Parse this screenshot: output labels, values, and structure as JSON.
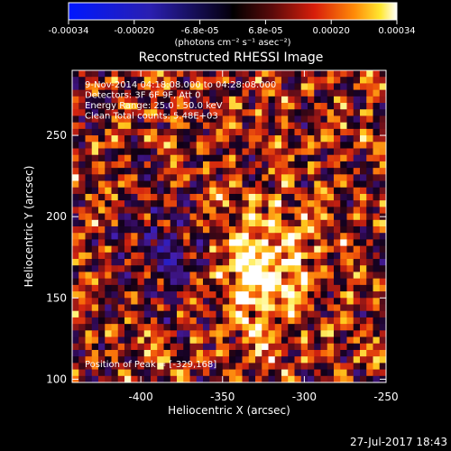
{
  "chart_data": {
    "type": "heatmap",
    "title": "Reconstructed RHESSI Image",
    "xlabel": "Heliocentric X (arcsec)",
    "ylabel": "Heliocentric Y (arcsec)",
    "x_ticks": [
      -400,
      -350,
      -300,
      -250
    ],
    "y_ticks": [
      100,
      150,
      200,
      250
    ],
    "xlim": [
      -442,
      -250
    ],
    "ylim": [
      98,
      290
    ],
    "colorbar": {
      "colormap": "blue-black-red-yellow-white",
      "range": [
        -0.00034,
        0.00034
      ],
      "ticks": [
        "-0.00034",
        "-0.00020",
        "-6.8e-05",
        "6.8e-05",
        "0.00020",
        "0.00034"
      ],
      "label": "(photons cm⁻² s⁻¹ asec⁻²)"
    },
    "annotations": [
      "9-Nov-2014 04:18:08.000 to 04:28:08.000",
      "Detectors: 3F 6F 9F, Att 0",
      "Energy Range: 25.0 - 50.0 keV",
      "Clean    Total counts: 5.48E+03"
    ],
    "peak_label": "Position of Peak = [-329,168]",
    "peak": [
      -329,
      168
    ]
  },
  "footer": {
    "date": "27-Jul-2017 18:43"
  }
}
